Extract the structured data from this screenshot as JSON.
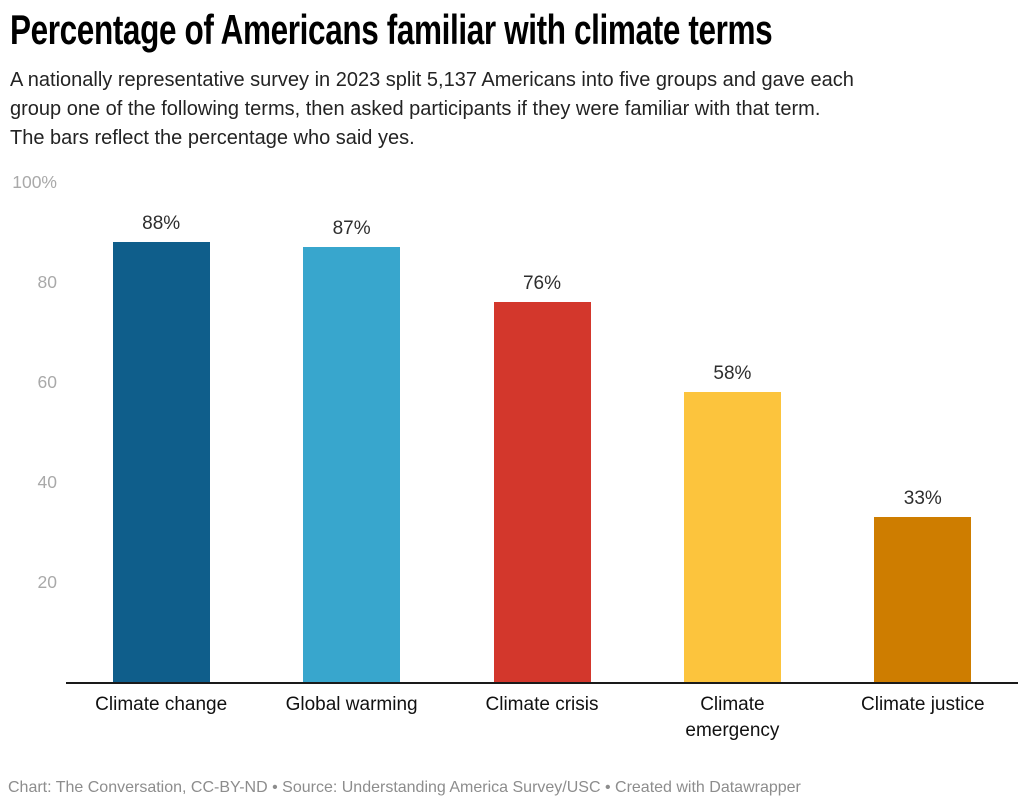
{
  "header": {
    "title": "Percentage of Americans familiar with climate terms",
    "description": "A nationally representative survey in 2023 split 5,137 Americans into five groups and gave each\ngroup one of the following terms, then asked participants if they were familiar with that term.\nThe bars reflect the percentage who said yes."
  },
  "chart_data": {
    "type": "bar",
    "title": "Percentage of Americans familiar with climate terms",
    "categories": [
      "Climate change",
      "Global warming",
      "Climate crisis",
      "Climate emergency",
      "Climate justice"
    ],
    "category_display": [
      "Climate change",
      "Global warming",
      "Climate crisis",
      "Climate\nemergency",
      "Climate justice"
    ],
    "values": [
      88,
      87,
      76,
      58,
      33
    ],
    "value_labels": [
      "88%",
      "87%",
      "76%",
      "58%",
      "33%"
    ],
    "bar_colors": [
      "#0f5e8b",
      "#38a6cd",
      "#d3372c",
      "#fcc43d",
      "#ce7d00"
    ],
    "xlabel": "",
    "ylabel": "",
    "ylim": [
      0,
      100
    ],
    "yticks": [
      20,
      40,
      60,
      80,
      100
    ],
    "ytick_labels": [
      "20",
      "40",
      "60",
      "80",
      "100%"
    ],
    "grid": false,
    "legend": false
  },
  "colors": {
    "axis_line": "#1a1a1a",
    "tick_label": "#a9a9a9",
    "value_label": "#2e2e2e",
    "category_label": "#111111",
    "footer_text": "#8d8d8d"
  },
  "footer": {
    "text": "Chart: The Conversation, CC-BY-ND • Source: Understanding America Survey/USC • Created with Datawrapper"
  }
}
